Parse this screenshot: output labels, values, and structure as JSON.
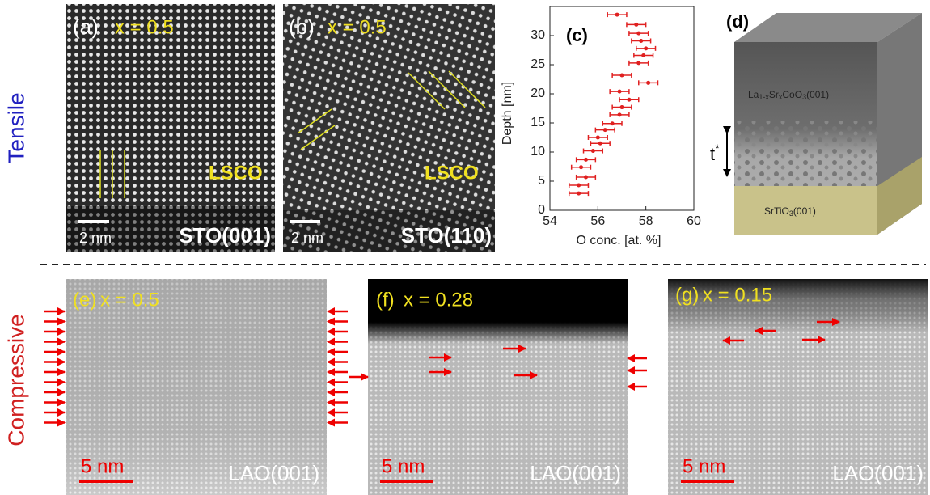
{
  "side_labels": {
    "tensile": "Tensile",
    "compressive": "Compressive"
  },
  "panels": {
    "a": {
      "tag": "(a)",
      "composition": "x = 0.5",
      "film": "LSCO",
      "substrate": "STO(001)",
      "scale": "2 nm"
    },
    "b": {
      "tag": "(b)",
      "composition": "x = 0.5",
      "film": "LSCO",
      "substrate": "STO(110)",
      "scale": "2 nm"
    },
    "d": {
      "tag": "(d)",
      "film": [
        "La",
        "1-x",
        "Sr",
        "x",
        "CoO",
        "3",
        "(001)"
      ],
      "thickness": [
        "t",
        "*"
      ],
      "substrate": [
        "SrTiO",
        "3",
        "(001)"
      ]
    },
    "e": {
      "tag": "(e)",
      "composition": "x = 0.5",
      "substrate": "LAO(001)",
      "scale": "5 nm"
    },
    "f": {
      "tag": "(f)",
      "composition": "x = 0.28",
      "substrate": "LAO(001)",
      "scale": "5 nm"
    },
    "g": {
      "tag": "(g)",
      "composition": "x = 0.15",
      "substrate": "LAO(001)",
      "scale": "5 nm"
    }
  },
  "chart_data": {
    "type": "scatter",
    "title": "(c)",
    "x_label": "O conc. [at. %]",
    "y_label": "Depth [nm]",
    "x": [
      56.8,
      57.6,
      57.7,
      57.8,
      58.0,
      57.9,
      57.7,
      57.0,
      58.1,
      56.9,
      57.3,
      57.0,
      56.9,
      56.6,
      56.3,
      56.0,
      56.1,
      55.8,
      55.5,
      55.3,
      55.5,
      55.2,
      55.2
    ],
    "values": [
      33.6,
      31.9,
      30.4,
      29.1,
      27.8,
      26.6,
      25.3,
      23.2,
      21.9,
      20.4,
      19.0,
      17.7,
      16.4,
      14.9,
      13.8,
      12.5,
      11.5,
      10.2,
      8.7,
      7.4,
      5.7,
      4.3,
      2.9
    ],
    "xerr": [
      0.4,
      0.4,
      0.4,
      0.4,
      0.4,
      0.4,
      0.4,
      0.4,
      0.4,
      0.4,
      0.4,
      0.4,
      0.4,
      0.4,
      0.4,
      0.4,
      0.4,
      0.4,
      0.4,
      0.4,
      0.4,
      0.4,
      0.4
    ],
    "color": "#e02020",
    "xlim": [
      54,
      60
    ],
    "ylim": [
      0,
      35
    ],
    "xticks": [
      54,
      56,
      58,
      60
    ],
    "yticks": [
      0,
      5,
      10,
      15,
      20,
      25,
      30
    ]
  }
}
